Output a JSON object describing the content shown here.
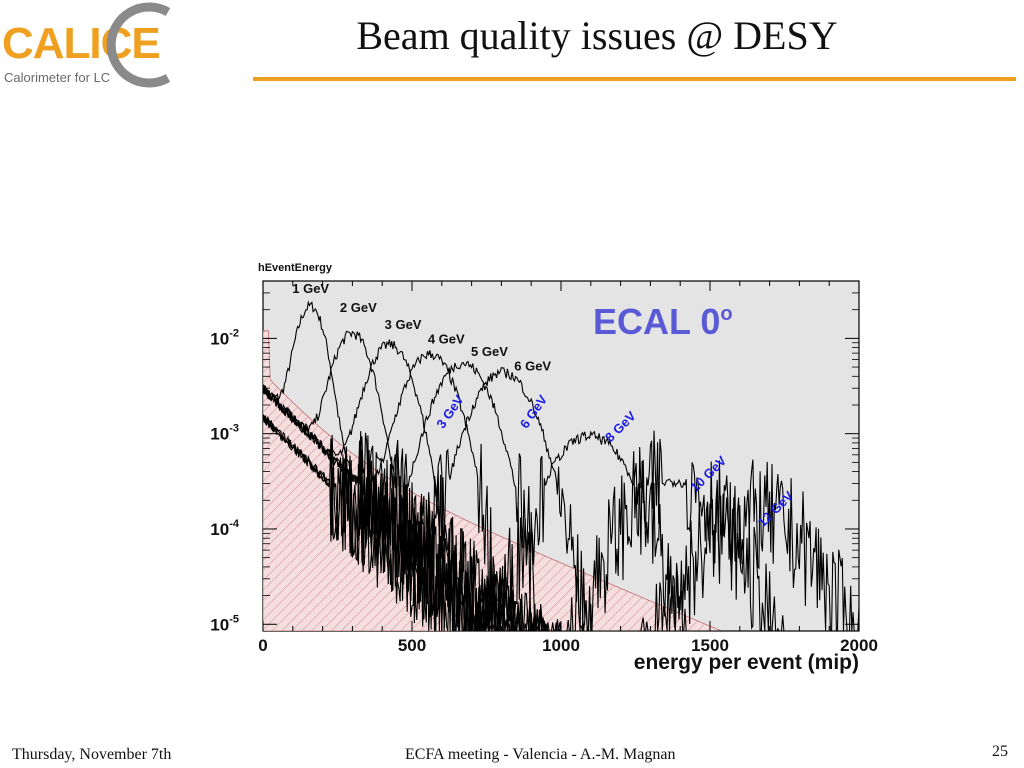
{
  "header": {
    "logo_text": "CALICE",
    "logo_subtitle": "Calorimeter for LC",
    "title": "Beam quality issues @ DESY"
  },
  "footer": {
    "date": "Thursday, November 7th",
    "meeting": "ECFA meeting - Valencia - A.-M. Magnan",
    "page_number": "25"
  },
  "colors": {
    "accent_rule": "#f0a020",
    "plot_background": "#e4e4e4",
    "black_labels": "#111111",
    "blue_labels": "#1a1ae6",
    "watermark": "#5a5ad6",
    "pink_fill": "#f5dede",
    "pink_hatch": "#d99a9a"
  },
  "chart_data": {
    "type": "line",
    "histogram_name": "hEventEnergy",
    "watermark_text": "ECAL 0",
    "watermark_superscript": "o",
    "xlabel": "energy per event (mip)",
    "ylabel": "",
    "xlim": [
      0,
      2000
    ],
    "ylim": [
      8.5e-06,
      0.04
    ],
    "yscale": "log",
    "x_ticks": [
      0,
      500,
      1000,
      1500,
      2000
    ],
    "x_tick_labels": [
      "0",
      "500",
      "1000",
      "1500",
      "2000"
    ],
    "y_ticks": [
      0.01,
      0.001,
      0.0001,
      1e-05
    ],
    "y_tick_labels": [
      {
        "base": "10",
        "exp": "-2"
      },
      {
        "base": "10",
        "exp": "-3"
      },
      {
        "base": "10",
        "exp": "-4"
      },
      {
        "base": "10",
        "exp": "-5"
      }
    ],
    "grid": false,
    "series": [
      {
        "name": "1 GeV",
        "peak_x": 160,
        "peak_y": 0.021,
        "sigma": 38,
        "label_color": "black",
        "label_x": 160,
        "label_y": 0.03,
        "label_rotation": 0
      },
      {
        "name": "2 GeV",
        "peak_x": 300,
        "peak_y": 0.011,
        "sigma": 50,
        "label_color": "black",
        "label_x": 320,
        "label_y": 0.019,
        "label_rotation": 0
      },
      {
        "name": "3 GeV",
        "peak_x": 425,
        "peak_y": 0.0085,
        "sigma": 58,
        "label_color": "black",
        "label_x": 470,
        "label_y": 0.0125,
        "label_rotation": 0
      },
      {
        "name": "4 GeV",
        "peak_x": 560,
        "peak_y": 0.0068,
        "sigma": 65,
        "label_color": "black",
        "label_x": 615,
        "label_y": 0.0088,
        "label_rotation": 0
      },
      {
        "name": "5 GeV",
        "peak_x": 670,
        "peak_y": 0.0055,
        "sigma": 72,
        "label_color": "black",
        "label_x": 760,
        "label_y": 0.0065,
        "label_rotation": 0
      },
      {
        "name": "6 GeV",
        "peak_x": 805,
        "peak_y": 0.0044,
        "sigma": 78,
        "label_color": "black",
        "label_x": 905,
        "label_y": 0.0046,
        "label_rotation": 0
      },
      {
        "name": "3 GeV",
        "peak_x": 0,
        "peak_y": 0,
        "sigma": 0,
        "label_color": "blue",
        "label_x": 640,
        "label_y": 0.0016,
        "label_rotation": -55
      },
      {
        "name": "6 GeV",
        "peak_x": 0,
        "peak_y": 0,
        "sigma": 0,
        "label_color": "blue",
        "label_x": 920,
        "label_y": 0.0016,
        "label_rotation": -55
      },
      {
        "name": "8 GeV",
        "peak_x": 1095,
        "peak_y": 0.00095,
        "sigma": 100,
        "label_color": "blue",
        "label_x": 1210,
        "label_y": 0.0011,
        "label_rotation": -45
      },
      {
        "name": "10 GeV",
        "peak_x": 1380,
        "peak_y": 0.00032,
        "sigma": 120,
        "label_color": "blue",
        "label_x": 1505,
        "label_y": 0.00035,
        "label_rotation": -45
      },
      {
        "name": "12 GeV",
        "peak_x": 1650,
        "peak_y": 0.000135,
        "sigma": 135,
        "label_color": "blue",
        "label_x": 1730,
        "label_y": 0.00015,
        "label_rotation": -45
      }
    ]
  }
}
